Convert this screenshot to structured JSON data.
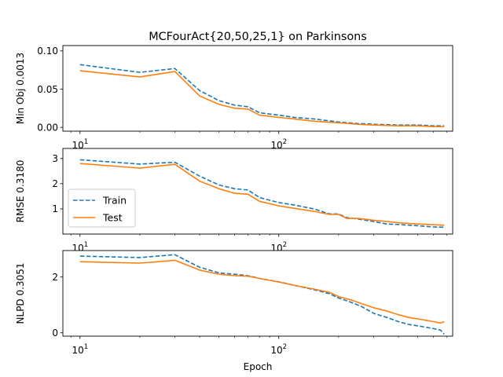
{
  "chart_data": [
    {
      "type": "line",
      "title": "MCFourAct{20,50,25,1} on Parkinsons",
      "ylabel": "Min Obj 0.0013",
      "xlabel": "",
      "xscale": "log",
      "xlim": [
        8.2,
        750
      ],
      "ylim": [
        -0.005,
        0.107
      ],
      "xticks": [
        {
          "v": 10,
          "base": "10",
          "exp": "1"
        },
        {
          "v": 100,
          "base": "10",
          "exp": "2"
        }
      ],
      "yticks": [
        {
          "v": 0.0,
          "label": "0.00"
        },
        {
          "v": 0.05,
          "label": "0.05"
        },
        {
          "v": 0.1,
          "label": "0.10"
        }
      ],
      "legend": null,
      "series": [
        {
          "name": "Train",
          "color": "#1f77b4",
          "dash": true,
          "x": [
            10,
            20,
            30,
            40,
            50,
            60,
            70,
            80,
            100,
            120,
            150,
            200,
            250,
            300,
            400,
            500,
            600,
            680
          ],
          "y": [
            0.082,
            0.072,
            0.077,
            0.048,
            0.035,
            0.029,
            0.027,
            0.019,
            0.016,
            0.013,
            0.011,
            0.007,
            0.005,
            0.004,
            0.003,
            0.003,
            0.002,
            0.002
          ]
        },
        {
          "name": "Test",
          "color": "#ff7f0e",
          "dash": false,
          "x": [
            10,
            20,
            30,
            40,
            50,
            60,
            70,
            80,
            100,
            120,
            150,
            200,
            250,
            300,
            400,
            500,
            600,
            680
          ],
          "y": [
            0.074,
            0.066,
            0.073,
            0.041,
            0.03,
            0.025,
            0.024,
            0.016,
            0.013,
            0.011,
            0.008,
            0.006,
            0.004,
            0.003,
            0.002,
            0.002,
            0.001,
            0.001
          ]
        }
      ]
    },
    {
      "type": "line",
      "title": "",
      "ylabel": "RMSE 0.3180",
      "xlabel": "",
      "xscale": "log",
      "xlim": [
        8.2,
        750
      ],
      "ylim": [
        0.0,
        3.4
      ],
      "xticks": [
        {
          "v": 10,
          "base": "10",
          "exp": "1"
        },
        {
          "v": 100,
          "base": "10",
          "exp": "2"
        }
      ],
      "yticks": [
        {
          "v": 1,
          "label": "1"
        },
        {
          "v": 2,
          "label": "2"
        },
        {
          "v": 3,
          "label": "3"
        }
      ],
      "legend": {
        "placement": "lower-left",
        "entries": [
          "Train",
          "Test"
        ]
      },
      "series": [
        {
          "name": "Train",
          "color": "#1f77b4",
          "dash": true,
          "x": [
            10,
            20,
            30,
            40,
            50,
            60,
            70,
            80,
            100,
            120,
            150,
            180,
            200,
            220,
            250,
            300,
            350,
            400,
            500,
            600,
            680
          ],
          "y": [
            2.95,
            2.78,
            2.85,
            2.3,
            1.95,
            1.8,
            1.75,
            1.45,
            1.25,
            1.15,
            1.0,
            0.8,
            0.8,
            0.65,
            0.6,
            0.5,
            0.4,
            0.38,
            0.33,
            0.28,
            0.27
          ]
        },
        {
          "name": "Test",
          "color": "#ff7f0e",
          "dash": false,
          "x": [
            10,
            20,
            30,
            40,
            50,
            60,
            70,
            80,
            100,
            120,
            150,
            180,
            200,
            220,
            250,
            300,
            350,
            400,
            500,
            600,
            680
          ],
          "y": [
            2.8,
            2.62,
            2.77,
            2.1,
            1.8,
            1.62,
            1.58,
            1.3,
            1.12,
            1.02,
            0.9,
            0.78,
            0.78,
            0.62,
            0.62,
            0.55,
            0.5,
            0.45,
            0.4,
            0.37,
            0.35
          ]
        }
      ]
    },
    {
      "type": "line",
      "title": "",
      "ylabel": "NLPD 0.3051",
      "xlabel": "Epoch",
      "xscale": "log",
      "xlim": [
        8.2,
        750
      ],
      "ylim": [
        -0.12,
        2.95
      ],
      "xticks": [
        {
          "v": 10,
          "base": "10",
          "exp": "1"
        },
        {
          "v": 100,
          "base": "10",
          "exp": "2"
        }
      ],
      "yticks": [
        {
          "v": 0,
          "label": "0"
        },
        {
          "v": 2,
          "label": "2"
        }
      ],
      "legend": null,
      "series": [
        {
          "name": "Train",
          "color": "#1f77b4",
          "dash": true,
          "x": [
            10,
            20,
            30,
            40,
            50,
            60,
            70,
            80,
            100,
            120,
            150,
            180,
            200,
            230,
            260,
            300,
            350,
            400,
            450,
            500,
            550,
            600,
            650,
            680
          ],
          "y": [
            2.75,
            2.7,
            2.8,
            2.35,
            2.15,
            2.1,
            2.05,
            1.95,
            1.83,
            1.7,
            1.55,
            1.4,
            1.25,
            1.1,
            0.95,
            0.7,
            0.55,
            0.4,
            0.3,
            0.25,
            0.2,
            0.15,
            0.1,
            -0.05
          ]
        },
        {
          "name": "Test",
          "color": "#ff7f0e",
          "dash": false,
          "x": [
            10,
            20,
            30,
            40,
            50,
            60,
            70,
            80,
            100,
            120,
            150,
            180,
            200,
            230,
            260,
            300,
            350,
            400,
            450,
            500,
            550,
            600,
            650,
            680
          ],
          "y": [
            2.55,
            2.5,
            2.6,
            2.25,
            2.1,
            2.05,
            2.03,
            1.95,
            1.82,
            1.7,
            1.57,
            1.45,
            1.3,
            1.18,
            1.05,
            0.9,
            0.78,
            0.65,
            0.55,
            0.5,
            0.45,
            0.4,
            0.35,
            0.4
          ]
        }
      ]
    }
  ]
}
